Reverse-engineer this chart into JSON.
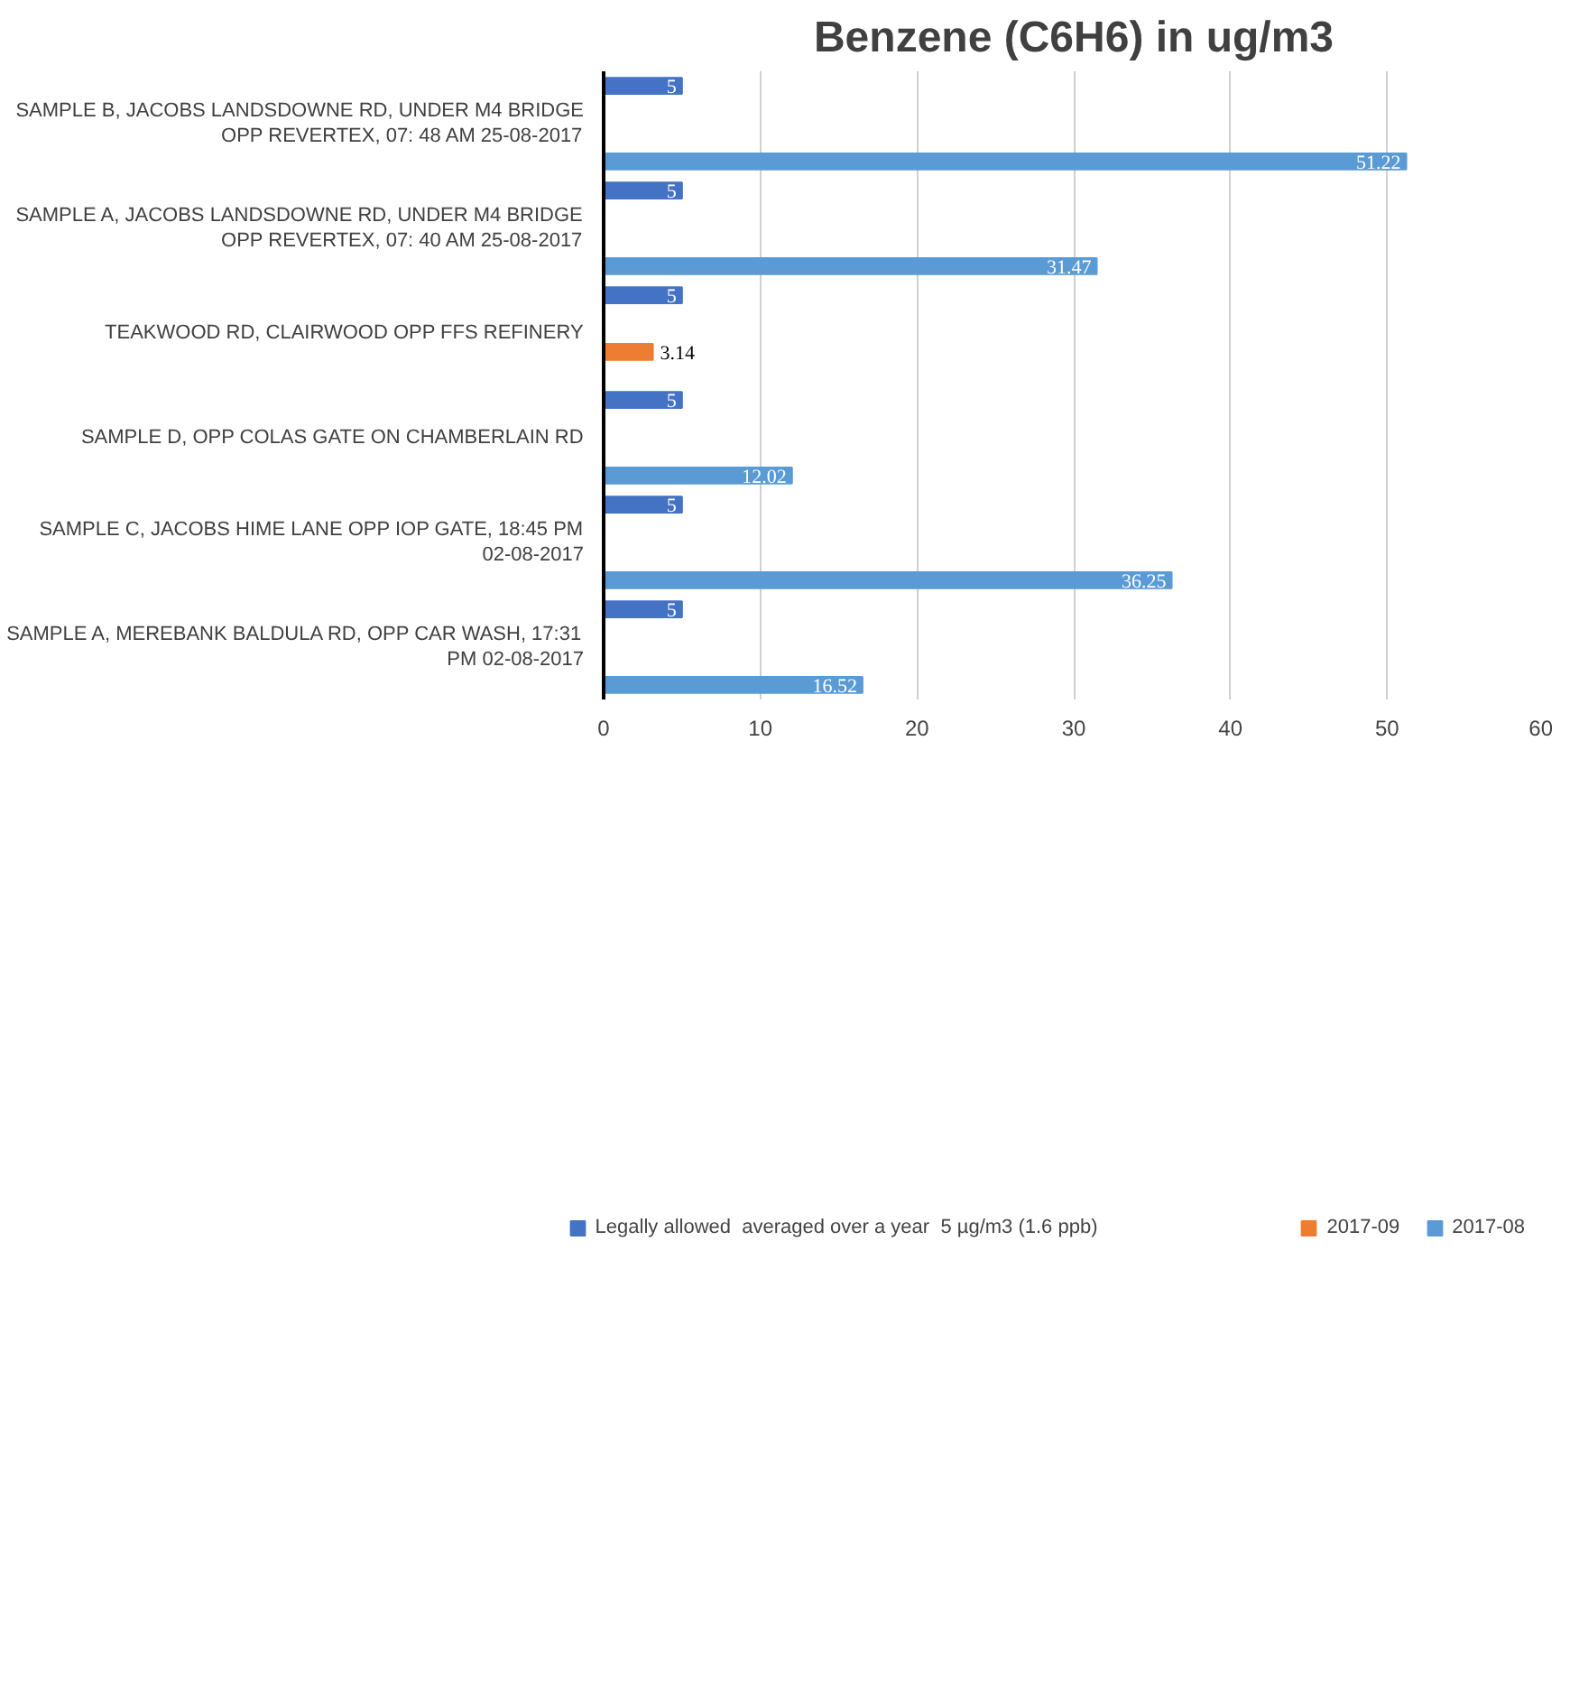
{
  "chart_data": {
    "type": "bar",
    "orientation": "horizontal",
    "title": "Benzene (C6H6) in ug/m3",
    "categories": [
      "SAMPLE B, JACOBS LANDSDOWNE RD, UNDER M4 BRIDGE OPP REVERTEX, 07: 48 AM 25-08-2017",
      "SAMPLE A, JACOBS LANDSDOWNE RD, UNDER M4 BRIDGE OPP REVERTEX, 07: 40 AM 25-08-2017",
      "TEAKWOOD RD, CLAIRWOOD OPP FFS REFINERY",
      "SAMPLE D, OPP COLAS GATE ON CHAMBERLAIN RD",
      "SAMPLE C, JACOBS HIME LANE OPP IOP GATE, 18:45 PM 02-08-2017",
      "SAMPLE A, MEREBANK BALDULA RD, OPP CAR WASH, 17:31 PM 02-08-2017"
    ],
    "series": [
      {
        "name": "Legally allowed  averaged over a year  5 µg/m3 (1.6 ppb)",
        "color": "#4472c4",
        "values": [
          5,
          5,
          5,
          5,
          5,
          5
        ]
      },
      {
        "color": "#ffc000",
        "values": [
          null,
          null,
          null,
          null,
          null,
          null
        ]
      },
      {
        "color": "#a5a5a5",
        "values": [
          null,
          null,
          null,
          null,
          null,
          null
        ]
      },
      {
        "name": "2017-09",
        "color": "#ed7d31",
        "values": [
          null,
          null,
          3.14,
          null,
          null,
          null
        ]
      },
      {
        "name": "2017-08",
        "color": "#5b9bd5",
        "values": [
          51.22,
          31.47,
          null,
          12.02,
          36.25,
          16.52
        ]
      }
    ],
    "xlim": [
      0,
      60
    ],
    "xticks": [
      0,
      10,
      20,
      30,
      40,
      50,
      60
    ],
    "grid": "x",
    "legend": "bottom",
    "data_labels": true
  }
}
